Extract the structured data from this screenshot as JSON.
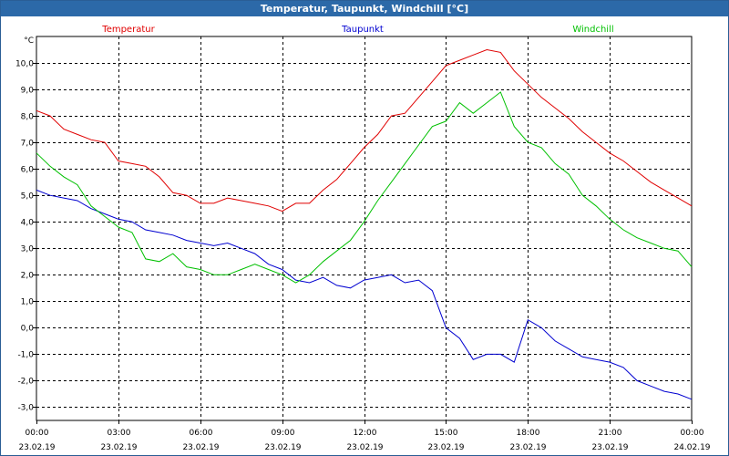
{
  "window": {
    "title": "Temperatur, Taupunkt, Windchill [°C]"
  },
  "chart_data": {
    "type": "line",
    "title": "Temperatur, Taupunkt, Windchill [°C]",
    "ylabel": "°C",
    "ylim": [
      -3.5,
      11.0
    ],
    "yticks": [
      "10,0",
      "9,0",
      "8,0",
      "7,0",
      "6,0",
      "5,0",
      "4,0",
      "3,0",
      "2,0",
      "1,0",
      "0,0",
      "-1,0",
      "-2,0",
      "-3,0"
    ],
    "xlim": [
      0,
      24
    ],
    "xticks": [
      {
        "time": "00:00",
        "date": "23.02.19"
      },
      {
        "time": "03:00",
        "date": "23.02.19"
      },
      {
        "time": "06:00",
        "date": "23.02.19"
      },
      {
        "time": "09:00",
        "date": "23.02.19"
      },
      {
        "time": "12:00",
        "date": "23.02.19"
      },
      {
        "time": "15:00",
        "date": "23.02.19"
      },
      {
        "time": "18:00",
        "date": "23.02.19"
      },
      {
        "time": "21:00",
        "date": "23.02.19"
      },
      {
        "time": "00:00",
        "date": "24.02.19"
      }
    ],
    "grid": true,
    "legend_position": "top",
    "series": [
      {
        "name": "Temperatur",
        "color": "#e00000",
        "points": [
          [
            0,
            8.2
          ],
          [
            0.5,
            8.0
          ],
          [
            1,
            7.5
          ],
          [
            1.5,
            7.3
          ],
          [
            2,
            7.1
          ],
          [
            2.5,
            7.0
          ],
          [
            3,
            6.3
          ],
          [
            3.5,
            6.2
          ],
          [
            4,
            6.1
          ],
          [
            4.5,
            5.7
          ],
          [
            5,
            5.1
          ],
          [
            5.5,
            5.0
          ],
          [
            6,
            4.7
          ],
          [
            6.5,
            4.7
          ],
          [
            7,
            4.9
          ],
          [
            7.5,
            4.8
          ],
          [
            8,
            4.7
          ],
          [
            8.5,
            4.6
          ],
          [
            9,
            4.4
          ],
          [
            9.5,
            4.7
          ],
          [
            10,
            4.7
          ],
          [
            10.5,
            5.2
          ],
          [
            11,
            5.6
          ],
          [
            11.5,
            6.2
          ],
          [
            12,
            6.8
          ],
          [
            12.5,
            7.3
          ],
          [
            13,
            8.0
          ],
          [
            13.5,
            8.1
          ],
          [
            14,
            8.7
          ],
          [
            14.5,
            9.3
          ],
          [
            15,
            9.9
          ],
          [
            15.5,
            10.1
          ],
          [
            16,
            10.3
          ],
          [
            16.5,
            10.5
          ],
          [
            17,
            10.4
          ],
          [
            17.5,
            9.7
          ],
          [
            18,
            9.2
          ],
          [
            18.5,
            8.7
          ],
          [
            19,
            8.3
          ],
          [
            19.5,
            7.9
          ],
          [
            20,
            7.4
          ],
          [
            20.5,
            7.0
          ],
          [
            21,
            6.6
          ],
          [
            21.5,
            6.3
          ],
          [
            22,
            5.9
          ],
          [
            22.5,
            5.5
          ],
          [
            23,
            5.2
          ],
          [
            23.5,
            4.9
          ],
          [
            24,
            4.6
          ]
        ]
      },
      {
        "name": "Taupunkt",
        "color": "#0000d0",
        "points": [
          [
            0,
            5.2
          ],
          [
            0.5,
            5.0
          ],
          [
            1,
            4.9
          ],
          [
            1.5,
            4.8
          ],
          [
            2,
            4.5
          ],
          [
            2.5,
            4.3
          ],
          [
            3,
            4.1
          ],
          [
            3.5,
            4.0
          ],
          [
            4,
            3.7
          ],
          [
            4.5,
            3.6
          ],
          [
            5,
            3.5
          ],
          [
            5.5,
            3.3
          ],
          [
            6,
            3.2
          ],
          [
            6.5,
            3.1
          ],
          [
            7,
            3.2
          ],
          [
            7.5,
            3.0
          ],
          [
            8,
            2.8
          ],
          [
            8.5,
            2.4
          ],
          [
            9,
            2.2
          ],
          [
            9.5,
            1.8
          ],
          [
            10,
            1.7
          ],
          [
            10.5,
            1.9
          ],
          [
            11,
            1.6
          ],
          [
            11.5,
            1.5
          ],
          [
            12,
            1.8
          ],
          [
            12.5,
            1.9
          ],
          [
            13,
            2.0
          ],
          [
            13.5,
            1.7
          ],
          [
            14,
            1.8
          ],
          [
            14.5,
            1.4
          ],
          [
            15,
            0.0
          ],
          [
            15.5,
            -0.4
          ],
          [
            16,
            -1.2
          ],
          [
            16.5,
            -1.0
          ],
          [
            17,
            -1.0
          ],
          [
            17.5,
            -1.3
          ],
          [
            18,
            0.3
          ],
          [
            18.5,
            0.0
          ],
          [
            19,
            -0.5
          ],
          [
            19.5,
            -0.8
          ],
          [
            20,
            -1.1
          ],
          [
            20.5,
            -1.2
          ],
          [
            21,
            -1.3
          ],
          [
            21.5,
            -1.5
          ],
          [
            22,
            -2.0
          ],
          [
            22.5,
            -2.2
          ],
          [
            23,
            -2.4
          ],
          [
            23.5,
            -2.5
          ],
          [
            24,
            -2.7
          ]
        ]
      },
      {
        "name": "Windchill",
        "color": "#00c000",
        "points": [
          [
            0,
            6.6
          ],
          [
            0.5,
            6.1
          ],
          [
            1,
            5.7
          ],
          [
            1.5,
            5.4
          ],
          [
            2,
            4.6
          ],
          [
            2.5,
            4.2
          ],
          [
            3,
            3.8
          ],
          [
            3.5,
            3.6
          ],
          [
            4,
            2.6
          ],
          [
            4.5,
            2.5
          ],
          [
            5,
            2.8
          ],
          [
            5.5,
            2.3
          ],
          [
            6,
            2.2
          ],
          [
            6.5,
            2.0
          ],
          [
            7,
            2.0
          ],
          [
            7.5,
            2.2
          ],
          [
            8,
            2.4
          ],
          [
            8.5,
            2.2
          ],
          [
            9,
            2.0
          ],
          [
            9.5,
            1.7
          ],
          [
            10,
            2.0
          ],
          [
            10.5,
            2.5
          ],
          [
            11,
            2.9
          ],
          [
            11.5,
            3.3
          ],
          [
            12,
            4.0
          ],
          [
            12.5,
            4.8
          ],
          [
            13,
            5.5
          ],
          [
            13.5,
            6.2
          ],
          [
            14,
            6.9
          ],
          [
            14.5,
            7.6
          ],
          [
            15,
            7.8
          ],
          [
            15.5,
            8.5
          ],
          [
            16,
            8.1
          ],
          [
            16.5,
            8.5
          ],
          [
            17,
            8.9
          ],
          [
            17.5,
            7.6
          ],
          [
            18,
            7.0
          ],
          [
            18.5,
            6.8
          ],
          [
            19,
            6.2
          ],
          [
            19.5,
            5.8
          ],
          [
            20,
            5.0
          ],
          [
            20.5,
            4.6
          ],
          [
            21,
            4.1
          ],
          [
            21.5,
            3.7
          ],
          [
            22,
            3.4
          ],
          [
            22.5,
            3.2
          ],
          [
            23,
            3.0
          ],
          [
            23.5,
            2.9
          ],
          [
            24,
            2.3
          ]
        ]
      }
    ]
  }
}
